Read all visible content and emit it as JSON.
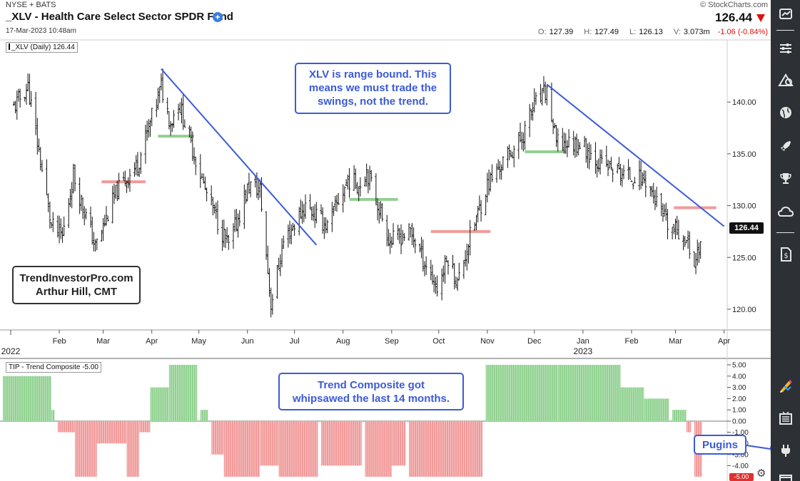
{
  "header": {
    "exchange": "NYSE + BATS",
    "title": "_XLV - Health Care Select Sector SPDR Fund",
    "date": "17-Mar-2023 10:48am",
    "copyright": "© StockCharts.com",
    "last": "126.44",
    "open_label": "O:",
    "open": "127.39",
    "high_label": "H:",
    "high": "127.49",
    "low_label": "L:",
    "low": "126.13",
    "volume_label": "V:",
    "volume": "3.073m",
    "change": "-1.06 (-0.84%)"
  },
  "colors": {
    "bar": "#111111",
    "trendline": "#3b5bd8",
    "red_level": "#f29a9a",
    "green_level": "#92cf92",
    "hist_green": "#8fd18f",
    "hist_red": "#f19999",
    "sidebar": "#2d3136"
  },
  "sidebar": {
    "icons": [
      "chart-settings-icon",
      "sliders-icon",
      "shapes-icon",
      "globe-icon",
      "rocket-icon",
      "trophy-icon",
      "cloud-icon",
      "document-dollar-icon",
      "pencil-icon",
      "chart-list-icon",
      "plugin-icon",
      "window-icon"
    ]
  },
  "annotations": {
    "range_note": "XLV is range bound. This means we must trade the swings, not the trend.",
    "tip_note": "Trend Composite got whipsawed the last 14 months.",
    "brand_line1": "TrendInvestorPro.com",
    "brand_line2": "Arthur Hill, CMT",
    "plugins": "Pugins"
  },
  "chart_data": [
    {
      "type": "ohlc",
      "legend": "_XLV (Daily) 126.44",
      "last_label": "126.44",
      "ylim": [
        118,
        146
      ],
      "yticks": [
        120,
        125,
        130,
        135,
        140
      ],
      "ytick_labels": [
        "120.00",
        "125.00",
        "130.00",
        "135.00",
        "140.00"
      ],
      "xticks": [
        "Feb",
        "Mar",
        "Apr",
        "May",
        "Jun",
        "Jul",
        "Aug",
        "Sep",
        "Oct",
        "Nov",
        "Dec",
        "Jan",
        "Feb",
        "Mar",
        "Apr"
      ],
      "year_labels": [
        "2022",
        "2023"
      ],
      "anchors": [
        {
          "d": "2022-01-03",
          "p": 139.5
        },
        {
          "d": "2022-01-12",
          "p": 141.5
        },
        {
          "d": "2022-01-27",
          "p": 128.0
        },
        {
          "d": "2022-02-03",
          "p": 127.0
        },
        {
          "d": "2022-02-10",
          "p": 133.0
        },
        {
          "d": "2022-02-24",
          "p": 126.0
        },
        {
          "d": "2022-03-10",
          "p": 131.5
        },
        {
          "d": "2022-03-23",
          "p": 134.0
        },
        {
          "d": "2022-04-07",
          "p": 141.5
        },
        {
          "d": "2022-04-13",
          "p": 138.0
        },
        {
          "d": "2022-04-18",
          "p": 140.0
        },
        {
          "d": "2022-05-05",
          "p": 131.5
        },
        {
          "d": "2022-05-13",
          "p": 128.5
        },
        {
          "d": "2022-05-20",
          "p": 126.0
        },
        {
          "d": "2022-06-02",
          "p": 132.0
        },
        {
          "d": "2022-06-09",
          "p": 131.5
        },
        {
          "d": "2022-06-16",
          "p": 120.5
        },
        {
          "d": "2022-06-24",
          "p": 126.5
        },
        {
          "d": "2022-07-08",
          "p": 130.0
        },
        {
          "d": "2022-07-22",
          "p": 128.0
        },
        {
          "d": "2022-08-04",
          "p": 132.5
        },
        {
          "d": "2022-08-11",
          "p": 132.0
        },
        {
          "d": "2022-08-16",
          "p": 133.5
        },
        {
          "d": "2022-08-31",
          "p": 126.5
        },
        {
          "d": "2022-09-13",
          "p": 127.5
        },
        {
          "d": "2022-09-30",
          "p": 122.0
        },
        {
          "d": "2022-10-07",
          "p": 125.0
        },
        {
          "d": "2022-10-13",
          "p": 122.5
        },
        {
          "d": "2022-10-21",
          "p": 127.0
        },
        {
          "d": "2022-11-01",
          "p": 132.0
        },
        {
          "d": "2022-11-10",
          "p": 134.0
        },
        {
          "d": "2022-11-23",
          "p": 136.5
        },
        {
          "d": "2022-11-30",
          "p": 139.5
        },
        {
          "d": "2022-12-09",
          "p": 141.0
        },
        {
          "d": "2022-12-15",
          "p": 136.0
        },
        {
          "d": "2022-12-30",
          "p": 136.0
        },
        {
          "d": "2023-01-13",
          "p": 134.0
        },
        {
          "d": "2023-01-27",
          "p": 133.0
        },
        {
          "d": "2023-02-10",
          "p": 132.5
        },
        {
          "d": "2023-02-24",
          "p": 128.0
        },
        {
          "d": "2023-03-02",
          "p": 127.5
        },
        {
          "d": "2023-03-07",
          "p": 127.0
        },
        {
          "d": "2023-03-13",
          "p": 124.5
        },
        {
          "d": "2023-03-17",
          "p": 126.44
        }
      ],
      "trendlines": [
        {
          "from": {
            "d": "2022-04-07",
            "p": 143.2
          },
          "to": {
            "d": "2022-07-15",
            "p": 126.2
          }
        },
        {
          "from": {
            "d": "2022-12-09",
            "p": 141.7
          },
          "to": {
            "d": "2023-04-01",
            "p": 128.0
          }
        }
      ],
      "levels": [
        {
          "from": "2022-02-28",
          "to": "2022-03-28",
          "p": 132.3,
          "color": "red"
        },
        {
          "from": "2022-04-05",
          "to": "2022-04-28",
          "p": 136.7,
          "color": "green"
        },
        {
          "from": "2022-08-05",
          "to": "2022-09-05",
          "p": 130.6,
          "color": "green"
        },
        {
          "from": "2022-09-26",
          "to": "2022-11-03",
          "p": 127.5,
          "color": "red"
        },
        {
          "from": "2022-11-25",
          "to": "2022-12-21",
          "p": 135.2,
          "color": "green"
        },
        {
          "from": "2023-02-28",
          "to": "2023-03-27",
          "p": 129.8,
          "color": "red"
        }
      ]
    },
    {
      "type": "histogram",
      "legend": "TIP - Trend Composite -5.00",
      "last_label": "-5.00",
      "ylim": [
        -5,
        5
      ],
      "yticks": [
        5,
        4,
        3,
        2,
        1,
        0,
        -1,
        -2,
        -3,
        -4
      ],
      "ytick_labels": [
        "5.00",
        "4.00",
        "3.00",
        "2.00",
        "1.00",
        "0.00",
        "-1.00",
        "-2.00",
        "-3.00",
        "-4.00"
      ],
      "segments": [
        {
          "from": "2021-12-27",
          "to": "2022-01-26",
          "v": 4
        },
        {
          "from": "2022-01-27",
          "to": "2022-01-28",
          "v": 1
        },
        {
          "from": "2022-01-31",
          "to": "2022-02-10",
          "v": -1
        },
        {
          "from": "2022-02-11",
          "to": "2022-02-24",
          "v": -5
        },
        {
          "from": "2022-02-25",
          "to": "2022-03-15",
          "v": -2
        },
        {
          "from": "2022-03-16",
          "to": "2022-03-23",
          "v": -5
        },
        {
          "from": "2022-03-24",
          "to": "2022-03-30",
          "v": -1
        },
        {
          "from": "2022-03-31",
          "to": "2022-04-11",
          "v": 3
        },
        {
          "from": "2022-04-12",
          "to": "2022-04-29",
          "v": 5
        },
        {
          "from": "2022-05-02",
          "to": "2022-05-06",
          "v": 1
        },
        {
          "from": "2022-05-09",
          "to": "2022-05-16",
          "v": -3
        },
        {
          "from": "2022-05-17",
          "to": "2022-06-08",
          "v": -5
        },
        {
          "from": "2022-06-09",
          "to": "2022-06-20",
          "v": -4
        },
        {
          "from": "2022-06-21",
          "to": "2022-07-15",
          "v": -5
        },
        {
          "from": "2022-07-18",
          "to": "2022-08-12",
          "v": -4
        },
        {
          "from": "2022-08-15",
          "to": "2022-08-31",
          "v": -5
        },
        {
          "from": "2022-09-01",
          "to": "2022-09-09",
          "v": -4
        },
        {
          "from": "2022-09-12",
          "to": "2022-10-28",
          "v": -5
        },
        {
          "from": "2022-10-31",
          "to": "2022-12-15",
          "v": 5
        },
        {
          "from": "2022-12-16",
          "to": "2023-01-24",
          "v": 5
        },
        {
          "from": "2023-01-25",
          "to": "2023-02-08",
          "v": 3
        },
        {
          "from": "2023-02-09",
          "to": "2023-02-24",
          "v": 2
        },
        {
          "from": "2023-02-27",
          "to": "2023-03-07",
          "v": 1
        },
        {
          "from": "2023-03-08",
          "to": "2023-03-10",
          "v": -1
        },
        {
          "from": "2023-03-13",
          "to": "2023-03-17",
          "v": -5
        }
      ]
    }
  ]
}
